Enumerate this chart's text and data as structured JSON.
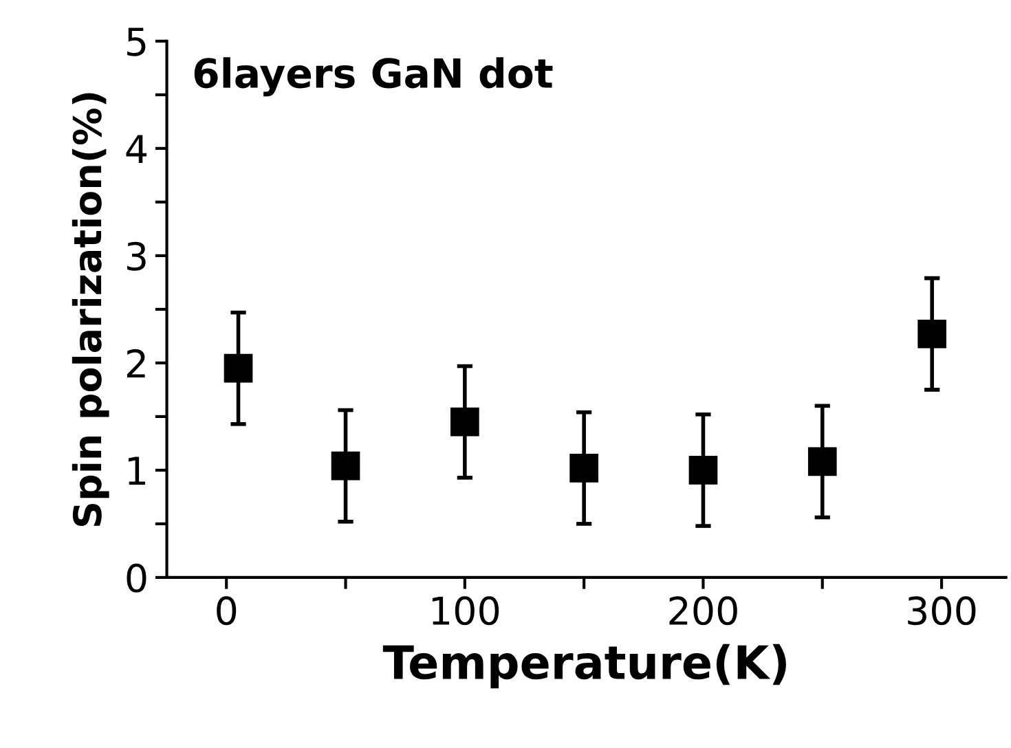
{
  "chart_data": {
    "type": "scatter",
    "title": "6layers GaN dot",
    "xlabel": "Temperature(K)",
    "ylabel": "Spin polarization(%)",
    "x": [
      5,
      50,
      100,
      150,
      200,
      250,
      296
    ],
    "series": [
      {
        "color": "#000000",
        "values": [
          1.95,
          1.04,
          1.45,
          1.02,
          1.0,
          1.08,
          2.27
        ],
        "errors": [
          0.52,
          0.52,
          0.52,
          0.52,
          0.52,
          0.52,
          0.52
        ]
      }
    ],
    "xlim": [
      -25,
      327
    ],
    "ylim": [
      0,
      5
    ],
    "xticks": [
      0,
      {
        "value": 50,
        "label": null
      },
      100,
      {
        "value": 150,
        "label": null
      },
      200,
      {
        "value": 250,
        "label": null
      },
      300
    ],
    "yticks": [
      0,
      {
        "value": 0.5,
        "label": null
      },
      1,
      {
        "value": 1.5,
        "label": null
      },
      2,
      {
        "value": 2.5,
        "label": null
      },
      3,
      {
        "value": 3.5,
        "label": null
      },
      4,
      {
        "value": 4.5,
        "label": null
      },
      5
    ],
    "marker": "square",
    "grid": false,
    "legend": false
  }
}
